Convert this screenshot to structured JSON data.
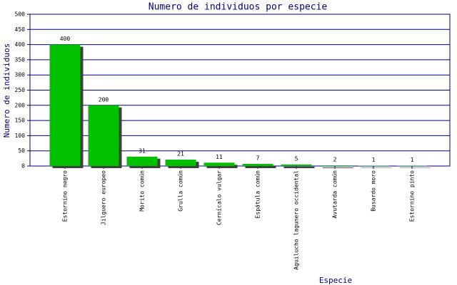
{
  "chart_data": {
    "type": "bar",
    "title": "Numero de individuos por especie",
    "x_label": "Especie",
    "y_label": "Numero de individuos",
    "categories": [
      "Estornino negro",
      "Jilguero europeo",
      "Morito común",
      "Grulla común",
      "Cernícalo vulgar",
      "Espátula común",
      "Aguilucho lagunero occidental",
      "Avutarda común",
      "Busardo moro",
      "Estornino pinto"
    ],
    "values": [
      400,
      200,
      31,
      21,
      11,
      7,
      5,
      2,
      1,
      1
    ],
    "color": "#00c000",
    "shadow_color": "#404040",
    "grid_color": "#000080",
    "ylim": [
      0,
      500
    ],
    "yticks": [
      0,
      50,
      100,
      150,
      200,
      250,
      300,
      350,
      400,
      450,
      500
    ],
    "grid": true
  }
}
